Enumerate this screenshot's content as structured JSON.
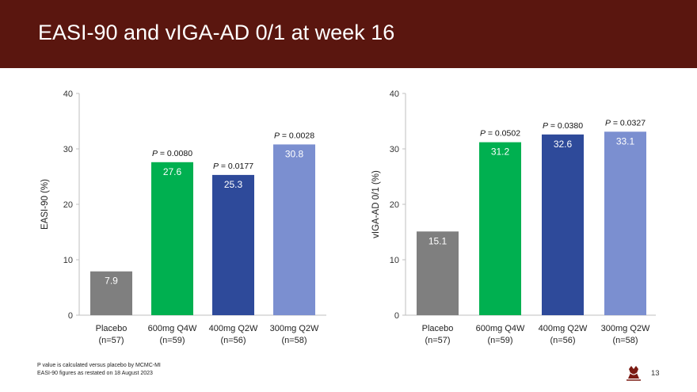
{
  "slide": {
    "title": "EASI-90 and vIGA-AD 0/1 at week 16",
    "footnotes": [
      "P value is calculated versus placebo by MCMC-MI",
      "EASI-90 figures as restated on 18 August 2023"
    ],
    "page_number": "13",
    "logo_icon": "ibex-logo-icon"
  },
  "colors": {
    "header_bg": "#5a160f",
    "placebo": "#7f7f7f",
    "q4w600": "#00b050",
    "q2w400": "#2e4a9a",
    "q2w300": "#7b8fd0"
  },
  "chart_data": [
    {
      "type": "bar",
      "title": "",
      "ylabel": "EASI-90 (%)",
      "xlabel": "",
      "ylim": [
        0,
        40
      ],
      "yticks": [
        0,
        10,
        20,
        30,
        40
      ],
      "categories": [
        {
          "name": "Placebo",
          "n": "(n=57)"
        },
        {
          "name": "600mg Q4W",
          "n": "(n=59)"
        },
        {
          "name": "400mg Q2W",
          "n": "(n=56)"
        },
        {
          "name": "300mg Q2W",
          "n": "(n=58)"
        }
      ],
      "values": [
        7.9,
        27.6,
        25.3,
        30.8
      ],
      "value_labels": [
        "7.9",
        "27.6",
        "25.3",
        "30.8"
      ],
      "annotations": [
        null,
        "0.0080",
        "0.0177",
        "0.0028"
      ],
      "grid": false
    },
    {
      "type": "bar",
      "title": "",
      "ylabel": "vIGA-AD 0/1 (%)",
      "xlabel": "",
      "ylim": [
        0,
        40
      ],
      "yticks": [
        0,
        10,
        20,
        30,
        40
      ],
      "categories": [
        {
          "name": "Placebo",
          "n": "(n=57)"
        },
        {
          "name": "600mg Q4W",
          "n": "(n=59)"
        },
        {
          "name": "400mg Q2W",
          "n": "(n=56)"
        },
        {
          "name": "300mg Q2W",
          "n": "(n=58)"
        }
      ],
      "values": [
        15.1,
        31.2,
        32.6,
        33.1
      ],
      "value_labels": [
        "15.1",
        "31.2",
        "32.6",
        "33.1"
      ],
      "annotations": [
        null,
        "0.0502",
        "0.0380",
        "0.0327"
      ],
      "grid": false
    }
  ]
}
